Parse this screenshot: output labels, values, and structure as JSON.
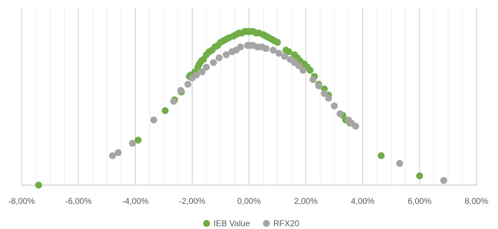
{
  "chart_data": {
    "type": "scatter",
    "title": "",
    "xlabel": "",
    "ylabel": "",
    "xlim": [
      -0.08,
      0.08
    ],
    "x_tick_values": [
      -0.08,
      -0.06,
      -0.04,
      -0.02,
      0.0,
      0.02,
      0.04,
      0.06,
      0.08
    ],
    "x_tick_labels": [
      "-8,00%",
      "-6,00%",
      "-4,00%",
      "-2,00%",
      "0,00%",
      "2,00%",
      "4,00%",
      "6,00%",
      "8,00%"
    ],
    "ylim": [
      0,
      1
    ],
    "y_axis_visible": false,
    "grid": {
      "major_vertical": true,
      "minor_vertical": true,
      "horizontal": false
    },
    "legend_position": "bottom",
    "series": [
      {
        "name": "IEB Value",
        "color": "#70ad47",
        "x": [
          -0.074,
          -0.039,
          -0.0295,
          -0.0262,
          -0.0238,
          -0.021,
          -0.0205,
          -0.019,
          -0.018,
          -0.0175,
          -0.0168,
          -0.016,
          -0.015,
          -0.014,
          -0.013,
          -0.012,
          -0.011,
          -0.01,
          -0.009,
          -0.008,
          -0.007,
          -0.0055,
          -0.0045,
          -0.0035,
          -0.0025,
          -0.0015,
          -0.0005,
          0.0,
          0.0005,
          0.0015,
          0.0025,
          0.0035,
          0.005,
          0.006,
          0.007,
          0.008,
          0.009,
          0.01,
          0.013,
          0.014,
          0.016,
          0.017,
          0.018,
          0.0195,
          0.0205,
          0.0215,
          0.023,
          0.0245,
          0.0265,
          0.028,
          0.033,
          0.034,
          0.0355,
          0.0465,
          0.06
        ],
        "y": [
          0.0,
          0.29,
          0.48,
          0.55,
          0.6,
          0.7,
          0.71,
          0.73,
          0.76,
          0.78,
          0.8,
          0.81,
          0.84,
          0.86,
          0.87,
          0.89,
          0.9,
          0.92,
          0.93,
          0.94,
          0.95,
          0.96,
          0.97,
          0.98,
          0.98,
          0.99,
          0.99,
          0.99,
          0.99,
          0.99,
          0.98,
          0.98,
          0.97,
          0.96,
          0.95,
          0.94,
          0.93,
          0.92,
          0.87,
          0.86,
          0.84,
          0.82,
          0.8,
          0.78,
          0.76,
          0.74,
          0.7,
          0.65,
          0.62,
          0.58,
          0.45,
          0.42,
          0.4,
          0.19,
          0.06
        ]
      },
      {
        "name": "RFX20",
        "color": "#a5a5a5",
        "x": [
          -0.048,
          -0.046,
          -0.041,
          -0.0335,
          -0.0265,
          -0.024,
          -0.0215,
          -0.02,
          -0.0185,
          -0.0165,
          -0.015,
          -0.0125,
          -0.0105,
          -0.008,
          -0.006,
          -0.0045,
          -0.003,
          -0.0005,
          0.0005,
          0.0015,
          0.003,
          0.0045,
          0.006,
          0.0085,
          0.0105,
          0.0125,
          0.0145,
          0.016,
          0.0175,
          0.019,
          0.0225,
          0.0245,
          0.0265,
          0.028,
          0.03,
          0.032,
          0.035,
          0.036,
          0.0375,
          0.053,
          0.0685
        ],
        "y": [
          0.19,
          0.21,
          0.27,
          0.42,
          0.54,
          0.61,
          0.65,
          0.69,
          0.71,
          0.73,
          0.76,
          0.79,
          0.82,
          0.84,
          0.86,
          0.87,
          0.89,
          0.9,
          0.9,
          0.9,
          0.89,
          0.89,
          0.88,
          0.87,
          0.85,
          0.83,
          0.81,
          0.79,
          0.77,
          0.74,
          0.68,
          0.64,
          0.59,
          0.56,
          0.51,
          0.46,
          0.42,
          0.4,
          0.38,
          0.14,
          0.03
        ]
      }
    ]
  }
}
